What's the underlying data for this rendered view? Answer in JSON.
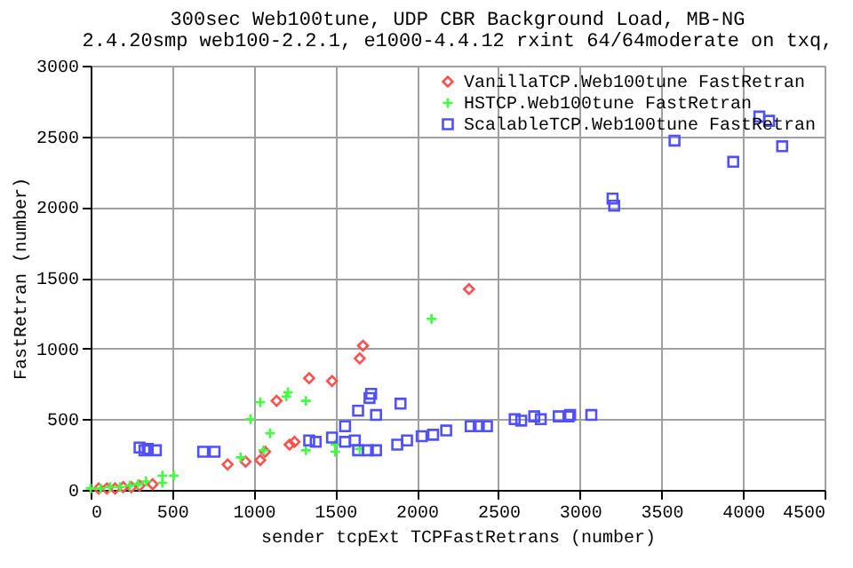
{
  "chart_data": {
    "type": "scatter",
    "title": "300sec Web100tune, UDP CBR Background Load, MB-NG",
    "subtitle": "2.4.20smp web100-2.2.1, e1000-4.4.12 rxint 64/64moderate on txq,",
    "xlabel": "sender tcpExt TCPFastRetrans (number)",
    "ylabel": "FastRetran (number)",
    "xlim": [
      0,
      4500
    ],
    "xticks": [
      0,
      500,
      1000,
      1500,
      2000,
      2500,
      3000,
      3500,
      4000,
      4500
    ],
    "ylim": [
      0,
      3000
    ],
    "yticks": [
      0,
      500,
      1000,
      1500,
      2000,
      2500,
      3000
    ],
    "grid": true,
    "legend": "top right",
    "series": [
      {
        "name": "VanillaTCP.Web100tune FastRetran",
        "color": "#ff5050",
        "marker": "diamond",
        "x": [
          50,
          100,
          150,
          200,
          250,
          300,
          380,
          840,
          950,
          1040,
          1070,
          1140,
          1220,
          1250,
          1340,
          1480,
          1650,
          1670,
          2320
        ],
        "values": [
          10,
          10,
          10,
          20,
          20,
          30,
          40,
          180,
          200,
          210,
          270,
          630,
          320,
          340,
          790,
          770,
          930,
          1020,
          1420
        ]
      },
      {
        "name": "HSTCP.Web100tune FastRetran",
        "color": "#40ff40",
        "marker": "cross",
        "x": [
          0,
          60,
          120,
          180,
          240,
          290,
          340,
          440,
          440,
          510,
          920,
          980,
          1040,
          1060,
          1100,
          1200,
          1210,
          1320,
          1320,
          1500,
          1500,
          1650,
          2090
        ],
        "values": [
          10,
          10,
          20,
          20,
          30,
          40,
          60,
          50,
          100,
          100,
          230,
          500,
          620,
          280,
          400,
          660,
          690,
          630,
          280,
          320,
          270,
          290,
          1210
        ]
      },
      {
        "name": "ScalableTCP.Web100tune FastRetran",
        "color": "#5050ff",
        "marker": "square",
        "x": [
          300,
          330,
          350,
          400,
          690,
          760,
          1340,
          1380,
          1480,
          1560,
          1560,
          1620,
          1640,
          1640,
          1700,
          1710,
          1720,
          1750,
          1750,
          1880,
          1900,
          1940,
          2030,
          2100,
          2180,
          2330,
          2380,
          2430,
          2600,
          2640,
          2720,
          2760,
          2870,
          2930,
          2940,
          3070,
          3200,
          3210,
          3580,
          3940,
          4100,
          4160,
          4240
        ],
        "values": [
          300,
          280,
          290,
          280,
          270,
          270,
          350,
          340,
          370,
          450,
          340,
          350,
          560,
          280,
          280,
          650,
          680,
          530,
          280,
          320,
          610,
          350,
          380,
          390,
          420,
          450,
          450,
          450,
          500,
          490,
          520,
          500,
          520,
          520,
          530,
          530,
          2060,
          2010,
          2470,
          2320,
          2640,
          2610,
          2430
        ]
      }
    ]
  }
}
